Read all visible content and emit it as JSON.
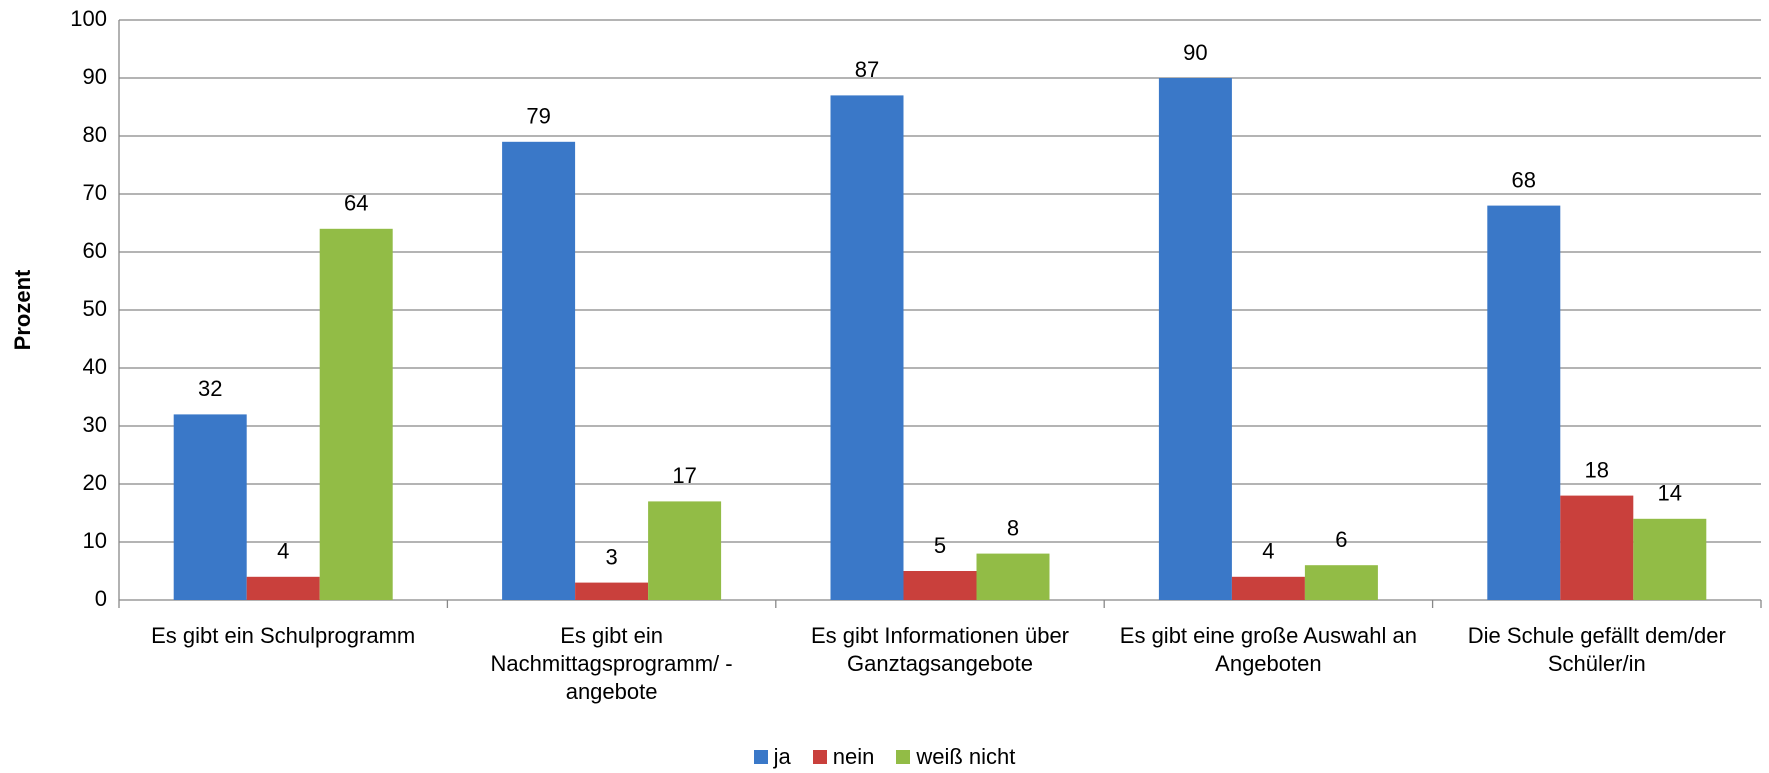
{
  "chart_data": {
    "type": "bar",
    "y_label": "Prozent",
    "categories": [
      "Es gibt ein Schulprogramm",
      "Es gibt ein Nachmittagsprogramm/ -angebote",
      "Es gibt Informationen über Ganztagsangebote",
      "Es gibt eine große Auswahl an Angeboten",
      "Die Schule gefällt dem/der Schüler/in"
    ],
    "series": [
      {
        "name": "ja",
        "color": "#3a78c8",
        "values": [
          32,
          79,
          87,
          90,
          68
        ]
      },
      {
        "name": "nein",
        "color": "#c9403c",
        "values": [
          4,
          3,
          5,
          4,
          18
        ]
      },
      {
        "name": "weiß nicht",
        "color": "#92bc46",
        "values": [
          64,
          17,
          8,
          6,
          14
        ]
      }
    ],
    "ylim": [
      0,
      100
    ],
    "yticks": [
      0,
      10,
      20,
      30,
      40,
      50,
      60,
      70,
      80,
      90,
      100
    ],
    "grid": true,
    "legend": "bottom"
  }
}
